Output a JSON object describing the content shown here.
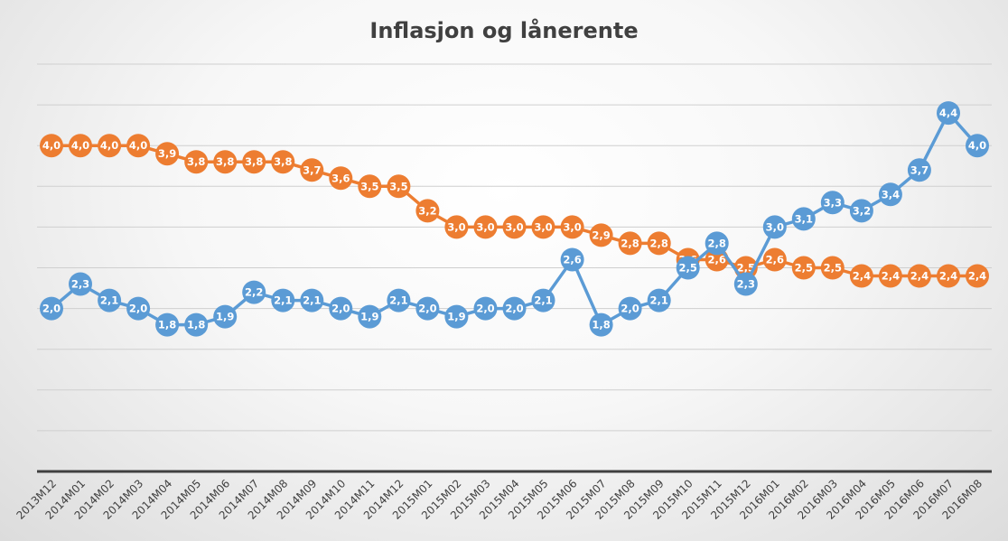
{
  "chart_data": {
    "type": "line",
    "title": "Inflasjon og lånerente",
    "xlabel": "",
    "ylabel": "",
    "ylim": [
      0,
      5
    ],
    "grid": true,
    "categories": [
      "2013M12",
      "2014M01",
      "2014M02",
      "2014M03",
      "2014M04",
      "2014M05",
      "2014M06",
      "2014M07",
      "2014M08",
      "2014M09",
      "2014M10",
      "2014M11",
      "2014M12",
      "2015M01",
      "2015M02",
      "2015M03",
      "2015M04",
      "2015M05",
      "2015M06",
      "2015M07",
      "2015M08",
      "2015M09",
      "2015M10",
      "2015M11",
      "2015M12",
      "2016M01",
      "2016M02",
      "2016M03",
      "2016M04",
      "2016M05",
      "2016M06",
      "2016M07",
      "2016M08"
    ],
    "series": [
      {
        "color": "#ED7D31",
        "values": [
          4.0,
          4.0,
          4.0,
          4.0,
          3.9,
          3.8,
          3.8,
          3.8,
          3.8,
          3.7,
          3.6,
          3.5,
          3.5,
          3.2,
          3.0,
          3.0,
          3.0,
          3.0,
          3.0,
          2.9,
          2.8,
          2.8,
          2.6,
          2.6,
          2.5,
          2.6,
          2.5,
          2.5,
          2.4,
          2.4,
          2.4,
          2.4,
          2.4
        ],
        "labels": [
          "4,0",
          "4,0",
          "4,0",
          "4,0",
          "3,9",
          "3,8",
          "3,8",
          "3,8",
          "3,8",
          "3,7",
          "3,6",
          "3,5",
          "3,5",
          "3,2",
          "3,0",
          "3,0",
          "3,0",
          "3,0",
          "3,0",
          "2,9",
          "2,8",
          "2,8",
          "2,6",
          "2,6",
          "2,5",
          "2,6",
          "2,5",
          "2,5",
          "2,4",
          "2,4",
          "2,4",
          "2,4",
          "2,4"
        ]
      },
      {
        "color": "#5B9BD5",
        "values": [
          2.0,
          2.3,
          2.1,
          2.0,
          1.8,
          1.8,
          1.9,
          2.2,
          2.1,
          2.1,
          2.0,
          1.9,
          2.1,
          2.0,
          1.9,
          2.0,
          2.0,
          2.1,
          2.6,
          1.8,
          2.0,
          2.1,
          2.5,
          2.8,
          2.3,
          3.0,
          3.1,
          3.3,
          3.2,
          3.4,
          3.7,
          4.4,
          4.0
        ],
        "labels": [
          "2,0",
          "2,3",
          "2,1",
          "2,0",
          "1,8",
          "1,8",
          "1,9",
          "2,2",
          "2,1",
          "2,1",
          "2,0",
          "1,9",
          "2,1",
          "2,0",
          "1,9",
          "2,0",
          "2,0",
          "2,1",
          "2,6",
          "1,8",
          "2,0",
          "2,1",
          "2,5",
          "2,8",
          "2,3",
          "3,0",
          "3,1",
          "3,3",
          "3,2",
          "3,4",
          "3,7",
          "4,4",
          "4,0"
        ]
      }
    ]
  }
}
